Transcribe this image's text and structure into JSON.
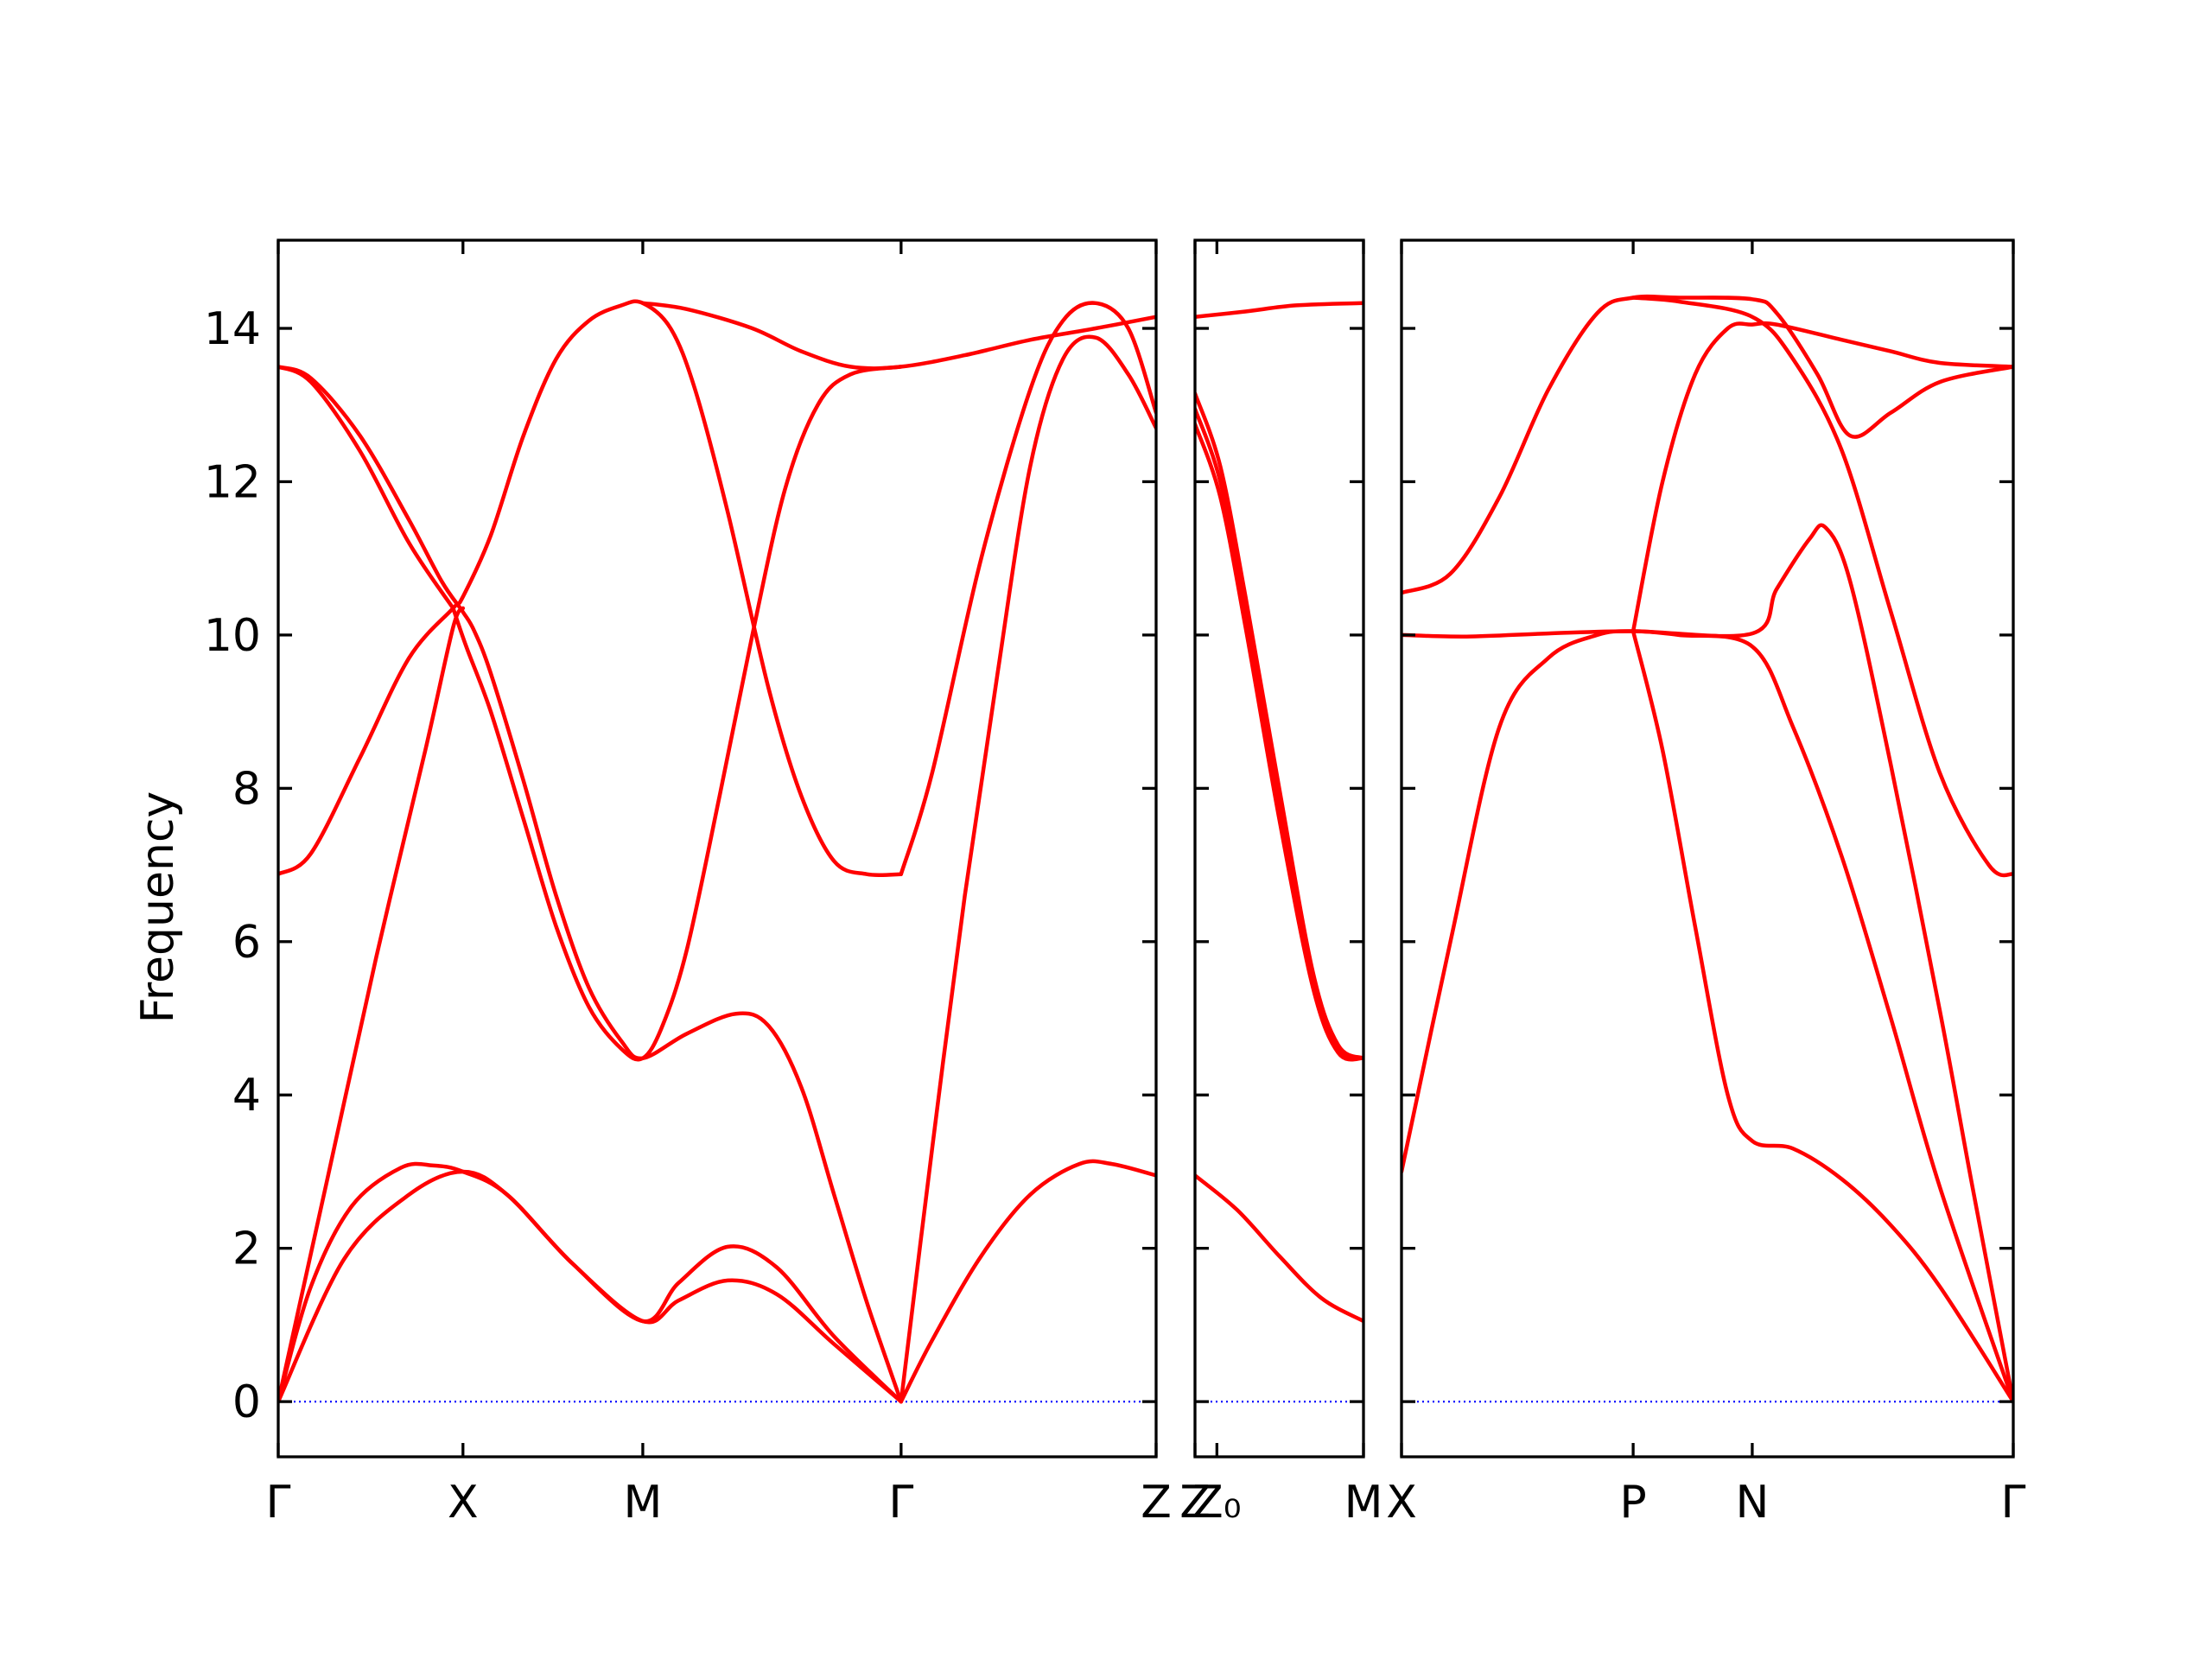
{
  "chart_data": {
    "type": "line",
    "ylabel": "Frequency",
    "ylim": [
      -0.72,
      15.15
    ],
    "yticks": [
      0,
      2,
      4,
      6,
      8,
      10,
      12,
      14
    ],
    "colors": {
      "bands": "#ff0000",
      "zero_line": "#0000ff"
    },
    "grid": false,
    "legend": "none",
    "segments": [
      {
        "x_range": [
          0,
          5.37
        ],
        "labels": [
          {
            "x": 0,
            "text": "Γ"
          },
          {
            "x": 1.13,
            "text": "X"
          },
          {
            "x": 2.23,
            "text": "M"
          },
          {
            "x": 3.81,
            "text": "Γ"
          },
          {
            "x": 5.37,
            "text": "Z"
          }
        ],
        "bands": [
          [
            [
              0,
              0
            ],
            [
              0.4,
              1.85
            ],
            [
              0.8,
              2.7
            ],
            [
              1.13,
              3.0
            ],
            [
              1.4,
              2.7
            ],
            [
              1.8,
              1.8
            ],
            [
              2.23,
              1.05
            ],
            [
              2.45,
              1.32
            ],
            [
              2.75,
              1.58
            ],
            [
              3.05,
              1.4
            ],
            [
              3.4,
              0.75
            ],
            [
              3.81,
              0
            ]
          ],
          [
            [
              0,
              0
            ],
            [
              0.2,
              1.5
            ],
            [
              0.45,
              2.55
            ],
            [
              0.75,
              3.05
            ],
            [
              0.95,
              3.08
            ],
            [
              1.13,
              3.0
            ],
            [
              1.4,
              2.7
            ],
            [
              1.8,
              1.8
            ],
            [
              2.23,
              1.05
            ],
            [
              2.45,
              1.55
            ],
            [
              2.75,
              2.02
            ],
            [
              3.05,
              1.75
            ],
            [
              3.4,
              0.85
            ],
            [
              3.81,
              0
            ]
          ],
          [
            [
              0,
              0
            ],
            [
              0.3,
              2.9
            ],
            [
              0.6,
              5.8
            ],
            [
              0.9,
              8.5
            ],
            [
              1.07,
              10.1
            ],
            [
              1.13,
              10.35
            ]
          ],
          [
            [
              1.07,
              10.35
            ],
            [
              1.15,
              9.85
            ],
            [
              1.3,
              9.0
            ],
            [
              1.5,
              7.6
            ],
            [
              1.7,
              6.2
            ],
            [
              1.9,
              5.15
            ],
            [
              2.1,
              4.6
            ],
            [
              2.23,
              4.48
            ],
            [
              2.35,
              4.9
            ],
            [
              2.5,
              5.9
            ],
            [
              2.7,
              7.9
            ],
            [
              2.9,
              10.0
            ],
            [
              3.1,
              11.9
            ],
            [
              3.3,
              13.0
            ],
            [
              3.5,
              13.4
            ],
            [
              3.81,
              13.5
            ]
          ],
          [
            [
              0,
              6.88
            ],
            [
              0.2,
              7.15
            ],
            [
              0.5,
              8.4
            ],
            [
              0.8,
              9.7
            ],
            [
              1.07,
              10.35
            ],
            [
              1.13,
              10.5
            ],
            [
              1.3,
              11.3
            ],
            [
              1.5,
              12.6
            ],
            [
              1.7,
              13.6
            ],
            [
              1.9,
              14.1
            ],
            [
              2.1,
              14.3
            ],
            [
              2.23,
              14.33
            ],
            [
              2.4,
              14.0
            ],
            [
              2.55,
              13.2
            ],
            [
              2.75,
              11.6
            ],
            [
              3.0,
              9.3
            ],
            [
              3.2,
              7.9
            ],
            [
              3.4,
              7.05
            ],
            [
              3.6,
              6.88
            ],
            [
              3.81,
              6.88
            ]
          ],
          [
            [
              0,
              13.5
            ],
            [
              0.2,
              13.35
            ],
            [
              0.5,
              12.6
            ],
            [
              0.8,
              11.5
            ],
            [
              1.0,
              10.7
            ],
            [
              1.13,
              10.3
            ],
            [
              1.2,
              10.05
            ],
            [
              1.3,
              9.5
            ],
            [
              1.5,
              8.1
            ],
            [
              1.7,
              6.6
            ],
            [
              1.9,
              5.4
            ],
            [
              2.1,
              4.7
            ],
            [
              2.23,
              4.48
            ],
            [
              2.5,
              4.8
            ],
            [
              2.8,
              5.06
            ],
            [
              3.0,
              4.9
            ],
            [
              3.2,
              4.1
            ],
            [
              3.4,
              2.7
            ],
            [
              3.6,
              1.3
            ],
            [
              3.81,
              0
            ]
          ],
          [
            [
              0,
              13.5
            ],
            [
              0.2,
              13.3
            ],
            [
              0.5,
              12.4
            ],
            [
              0.8,
              11.2
            ],
            [
              1.07,
              10.35
            ]
          ],
          [
            [
              2.23,
              14.33
            ],
            [
              2.5,
              14.25
            ],
            [
              2.9,
              14.0
            ],
            [
              3.2,
              13.7
            ],
            [
              3.5,
              13.5
            ],
            [
              3.81,
              13.5
            ],
            [
              4.2,
              13.65
            ],
            [
              4.6,
              13.85
            ],
            [
              5.0,
              14.0
            ],
            [
              5.37,
              14.15
            ]
          ],
          [
            [
              3.81,
              0
            ],
            [
              4.0,
              0.8
            ],
            [
              4.3,
              1.9
            ],
            [
              4.6,
              2.7
            ],
            [
              4.9,
              3.1
            ],
            [
              5.1,
              3.1
            ],
            [
              5.37,
              2.95
            ]
          ],
          [
            [
              3.81,
              6.88
            ],
            [
              4.0,
              8.2
            ],
            [
              4.3,
              11.0
            ],
            [
              4.6,
              13.2
            ],
            [
              4.8,
              14.1
            ],
            [
              5.0,
              14.33
            ],
            [
              5.2,
              14.0
            ],
            [
              5.37,
              12.9
            ]
          ],
          [
            [
              3.81,
              0
            ],
            [
              4.0,
              3.3
            ],
            [
              4.2,
              6.6
            ],
            [
              4.4,
              9.5
            ],
            [
              4.6,
              12.2
            ],
            [
              4.8,
              13.6
            ],
            [
              5.0,
              13.88
            ],
            [
              5.2,
              13.4
            ],
            [
              5.37,
              12.7
            ]
          ]
        ]
      },
      {
        "x_range": [
          0,
          1
        ],
        "labels": [
          {
            "x": 0,
            "text": "Z"
          },
          {
            "x": 0.13,
            "text": "Z₀"
          },
          {
            "x": 1,
            "text": "M"
          }
        ],
        "bands": [
          [
            [
              0,
              14.15
            ],
            [
              0.3,
              14.22
            ],
            [
              0.6,
              14.3
            ],
            [
              1,
              14.33
            ]
          ],
          [
            [
              0,
              13.15
            ],
            [
              0.15,
              12.2
            ],
            [
              0.3,
              10.5
            ],
            [
              0.5,
              8.0
            ],
            [
              0.7,
              5.6
            ],
            [
              0.85,
              4.65
            ],
            [
              1,
              4.48
            ]
          ],
          [
            [
              0,
              12.95
            ],
            [
              0.15,
              12.0
            ],
            [
              0.3,
              10.3
            ],
            [
              0.5,
              7.8
            ],
            [
              0.7,
              5.5
            ],
            [
              0.85,
              4.6
            ],
            [
              1,
              4.48
            ]
          ],
          [
            [
              0,
              12.75
            ],
            [
              0.15,
              11.8
            ],
            [
              0.3,
              10.1
            ],
            [
              0.5,
              7.6
            ],
            [
              0.7,
              5.4
            ],
            [
              0.85,
              4.55
            ],
            [
              1,
              4.48
            ]
          ],
          [
            [
              0,
              2.95
            ],
            [
              0.25,
              2.5
            ],
            [
              0.5,
              1.9
            ],
            [
              0.75,
              1.35
            ],
            [
              1,
              1.05
            ]
          ]
        ]
      },
      {
        "x_range": [
          0,
          3.75
        ],
        "labels": [
          {
            "x": 0,
            "text": "X"
          },
          {
            "x": 1.42,
            "text": "P"
          },
          {
            "x": 2.15,
            "text": "N"
          },
          {
            "x": 3.75,
            "text": "Γ"
          }
        ],
        "bands": [
          [
            [
              0,
              10.55
            ],
            [
              0.3,
              10.8
            ],
            [
              0.6,
              11.8
            ],
            [
              0.9,
              13.2
            ],
            [
              1.2,
              14.2
            ],
            [
              1.42,
              14.4
            ],
            [
              1.7,
              14.4
            ],
            [
              2.15,
              14.38
            ],
            [
              2.3,
              14.2
            ],
            [
              2.55,
              13.4
            ],
            [
              2.75,
              12.6
            ],
            [
              3.0,
              12.9
            ],
            [
              3.3,
              13.3
            ],
            [
              3.75,
              13.5
            ]
          ],
          [
            [
              0,
              10.0
            ],
            [
              0.4,
              9.98
            ],
            [
              0.9,
              10.02
            ],
            [
              1.42,
              10.05
            ],
            [
              2.15,
              10.02
            ],
            [
              2.3,
              10.6
            ],
            [
              2.5,
              11.25
            ],
            [
              2.6,
              11.4
            ],
            [
              2.75,
              10.7
            ],
            [
              3.0,
              8.3
            ],
            [
              3.3,
              5.1
            ],
            [
              3.5,
              2.8
            ],
            [
              3.75,
              0
            ]
          ],
          [
            [
              0,
              3.0
            ],
            [
              0.3,
              6.0
            ],
            [
              0.6,
              8.8
            ],
            [
              0.9,
              9.7
            ],
            [
              1.2,
              10.0
            ],
            [
              1.42,
              10.05
            ],
            [
              1.7,
              10.0
            ],
            [
              2.15,
              9.85
            ],
            [
              2.4,
              8.8
            ],
            [
              2.7,
              7.1
            ],
            [
              3.0,
              5.0
            ],
            [
              3.3,
              2.8
            ],
            [
              3.75,
              0
            ]
          ],
          [
            [
              1.42,
              10.05
            ],
            [
              1.6,
              8.5
            ],
            [
              1.8,
              6.2
            ],
            [
              2.0,
              4.0
            ],
            [
              2.15,
              3.4
            ],
            [
              2.4,
              3.3
            ],
            [
              2.7,
              2.9
            ],
            [
              3.0,
              2.3
            ],
            [
              3.3,
              1.5
            ],
            [
              3.75,
              0
            ]
          ],
          [
            [
              1.42,
              10.05
            ],
            [
              1.6,
              12.0
            ],
            [
              1.8,
              13.4
            ],
            [
              2.0,
              14.0
            ],
            [
              2.15,
              14.05
            ],
            [
              2.3,
              14.05
            ],
            [
              2.7,
              13.85
            ],
            [
              3.0,
              13.7
            ],
            [
              3.3,
              13.55
            ],
            [
              3.75,
              13.5
            ]
          ],
          [
            [
              1.42,
              14.4
            ],
            [
              1.7,
              14.35
            ],
            [
              2.15,
              14.15
            ],
            [
              2.4,
              13.6
            ],
            [
              2.7,
              12.4
            ],
            [
              3.0,
              10.3
            ],
            [
              3.3,
              8.2
            ],
            [
              3.6,
              7.0
            ],
            [
              3.75,
              6.88
            ]
          ]
        ]
      }
    ]
  }
}
